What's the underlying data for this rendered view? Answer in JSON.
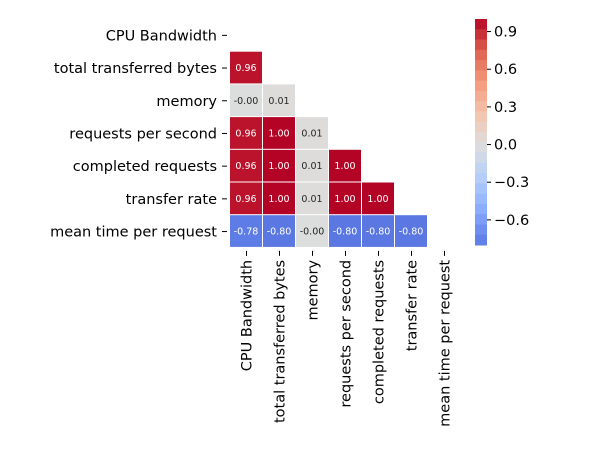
{
  "chart_data": {
    "type": "heatmap",
    "title": "",
    "variables": [
      "CPU Bandwidth",
      "total transferred bytes",
      "memory",
      "requests per second",
      "completed requests",
      "transfer rate",
      "mean time per request"
    ],
    "mask": "upper-triangle-including-diagonal",
    "cells": [
      {
        "row": 1,
        "col": 0,
        "value": 0.96,
        "label": "0.96"
      },
      {
        "row": 2,
        "col": 0,
        "value": -0.004,
        "label": "-0.00"
      },
      {
        "row": 2,
        "col": 1,
        "value": 0.01,
        "label": "0.01"
      },
      {
        "row": 3,
        "col": 0,
        "value": 0.96,
        "label": "0.96"
      },
      {
        "row": 3,
        "col": 1,
        "value": 1.0,
        "label": "1.00"
      },
      {
        "row": 3,
        "col": 2,
        "value": 0.01,
        "label": "0.01"
      },
      {
        "row": 4,
        "col": 0,
        "value": 0.96,
        "label": "0.96"
      },
      {
        "row": 4,
        "col": 1,
        "value": 1.0,
        "label": "1.00"
      },
      {
        "row": 4,
        "col": 2,
        "value": 0.01,
        "label": "0.01"
      },
      {
        "row": 4,
        "col": 3,
        "value": 1.0,
        "label": "1.00"
      },
      {
        "row": 5,
        "col": 0,
        "value": 0.96,
        "label": "0.96"
      },
      {
        "row": 5,
        "col": 1,
        "value": 1.0,
        "label": "1.00"
      },
      {
        "row": 5,
        "col": 2,
        "value": 0.01,
        "label": "0.01"
      },
      {
        "row": 5,
        "col": 3,
        "value": 1.0,
        "label": "1.00"
      },
      {
        "row": 5,
        "col": 4,
        "value": 1.0,
        "label": "1.00"
      },
      {
        "row": 6,
        "col": 0,
        "value": -0.78,
        "label": "-0.78"
      },
      {
        "row": 6,
        "col": 1,
        "value": -0.8,
        "label": "-0.80"
      },
      {
        "row": 6,
        "col": 2,
        "value": -0.004,
        "label": "-0.00"
      },
      {
        "row": 6,
        "col": 3,
        "value": -0.8,
        "label": "-0.80"
      },
      {
        "row": 6,
        "col": 4,
        "value": -0.8,
        "label": "-0.80"
      },
      {
        "row": 6,
        "col": 5,
        "value": -0.8,
        "label": "-0.80"
      }
    ],
    "colorbar": {
      "colormap": "coolwarm-diverging",
      "range": [
        -0.8,
        1.0
      ],
      "ticks": [
        0.9,
        0.6,
        0.3,
        0.0,
        -0.3,
        -0.6
      ],
      "tick_labels": [
        "0.9",
        "0.6",
        "0.3",
        "0.0",
        "−0.3",
        "−0.6"
      ],
      "discrete_levels": 22
    },
    "grid": false,
    "colors": {
      "strong_positive": "#cd3a34",
      "neutral": "#dddddd",
      "negative": "#6c8ff0"
    }
  }
}
